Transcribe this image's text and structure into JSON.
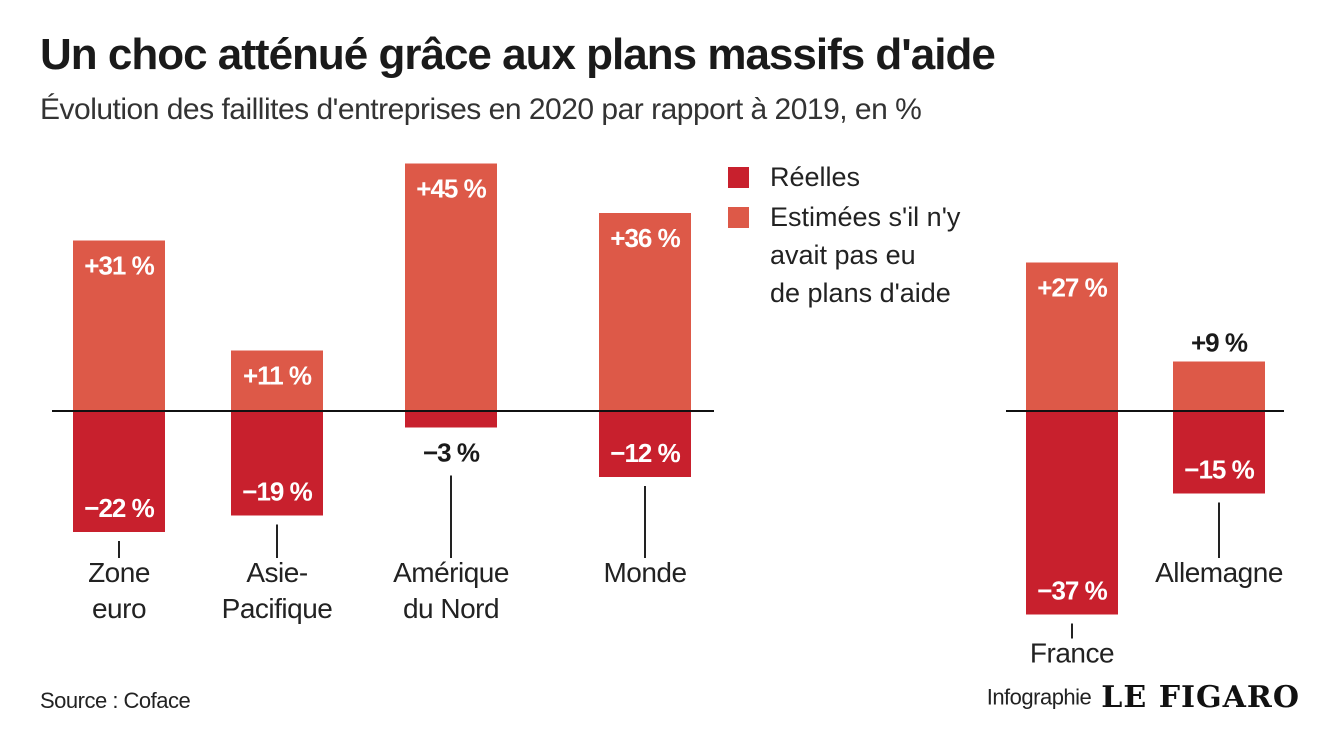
{
  "header": {
    "title": "Un choc atténué grâce aux plans massifs d'aide",
    "subtitle": "Évolution des faillites d'entreprises en 2020 par rapport à 2019, en %"
  },
  "legend": [
    {
      "label": "Réelles",
      "color": "#c8202d"
    },
    {
      "label": "Estimées s'il n'y\navait pas eu\nde plans d'aide",
      "color": "#dd5948"
    }
  ],
  "footer": {
    "source": "Source : Coface",
    "credit_label": "Infographie",
    "logo": "LE FIGARO"
  },
  "chart_data": {
    "type": "bar",
    "categories": [
      "Zone\neuro",
      "Asie-\nPacifique",
      "Amérique\ndu Nord",
      "Monde",
      "France",
      "Allemagne"
    ],
    "series": [
      {
        "name": "Réelles",
        "color": "#c8202d",
        "values": [
          -22,
          -19,
          -3,
          -12,
          -37,
          -15
        ],
        "labels": [
          "−22 %",
          "−19 %",
          "−3 %",
          "−12 %",
          "−37 %",
          "−15 %"
        ]
      },
      {
        "name": "Estimées s'il n'y avait pas eu de plans d'aide",
        "color": "#dd5948",
        "values": [
          31,
          11,
          45,
          36,
          27,
          9
        ],
        "labels": [
          "+31 %",
          "+11 %",
          "+45 %",
          "+36 %",
          "+27 %",
          "+9 %"
        ]
      }
    ],
    "groups": [
      [
        "Zone\neuro",
        "Asie-\nPacifique",
        "Amérique\ndu Nord",
        "Monde"
      ],
      [
        "France",
        "Allemagne"
      ]
    ],
    "xlabel": "",
    "ylabel": "",
    "grid": false
  }
}
